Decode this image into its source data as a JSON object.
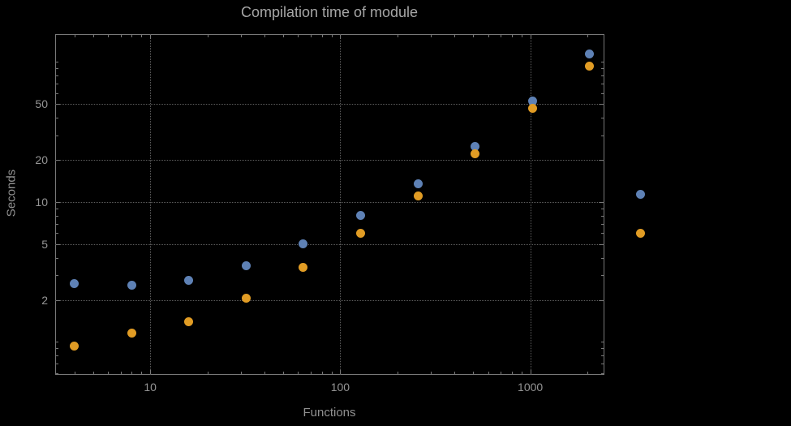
{
  "chart_data": {
    "type": "scatter",
    "title": "Compilation time of module",
    "xlabel": "Functions",
    "ylabel": "Seconds",
    "xscale": "log",
    "yscale": "log",
    "grid": true,
    "background": "#000000",
    "frame_color": "#787878",
    "grid_color": "#5e5e5e",
    "text_color": "#959595",
    "x": [
      4,
      8,
      16,
      32,
      64,
      128,
      256,
      512,
      1024,
      2048
    ],
    "series": [
      {
        "name": "series-1",
        "color": "#5e81b5",
        "values": [
          2.6,
          2.55,
          2.75,
          3.5,
          5.0,
          8.0,
          13.5,
          25,
          53,
          115
        ]
      },
      {
        "name": "series-2",
        "color": "#e19c24",
        "values": [
          0.93,
          1.15,
          1.4,
          2.05,
          3.4,
          6.0,
          11,
          22,
          47,
          93
        ]
      }
    ],
    "x_ticks": [
      10,
      100,
      1000
    ],
    "y_ticks": [
      2,
      5,
      10,
      20,
      50
    ],
    "xlim_log": [
      0.5,
      3.39
    ],
    "ylim_log": [
      -0.235,
      2.2
    ],
    "legend": {
      "position": "right-outside",
      "markers": [
        "series-1",
        "series-2"
      ],
      "labels_visible": false
    }
  }
}
